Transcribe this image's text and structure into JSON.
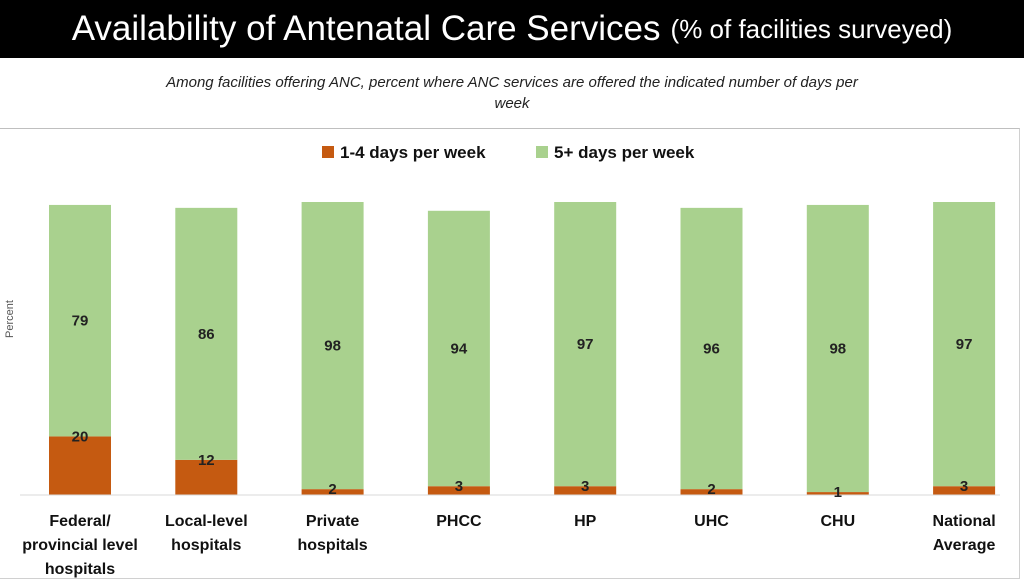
{
  "title": {
    "main": "Availability of Antenatal Care Services",
    "unit": "(% of facilities surveyed)"
  },
  "subtitle": "Among facilities offering ANC, percent where ANC services are offered the indicated number of days per week",
  "chart_data": {
    "type": "bar",
    "stacked": true,
    "ylabel": "Percent",
    "ylim": [
      0,
      100
    ],
    "grid": false,
    "legend_position": "top-center",
    "categories": [
      [
        "Federal/",
        "provincial level",
        "hospitals"
      ],
      [
        "Local-level",
        "hospitals"
      ],
      [
        "Private",
        "hospitals"
      ],
      [
        "PHCC"
      ],
      [
        "HP"
      ],
      [
        "UHC"
      ],
      [
        "CHU"
      ],
      [
        "National",
        "Average"
      ]
    ],
    "series": [
      {
        "name": "1-4 days per week",
        "color": "#C55A11",
        "values": [
          20,
          12,
          2,
          3,
          3,
          2,
          1,
          3
        ]
      },
      {
        "name": "5+ days per week",
        "color": "#A9D18E",
        "values": [
          79,
          86,
          98,
          94,
          97,
          96,
          98,
          97
        ]
      }
    ]
  }
}
